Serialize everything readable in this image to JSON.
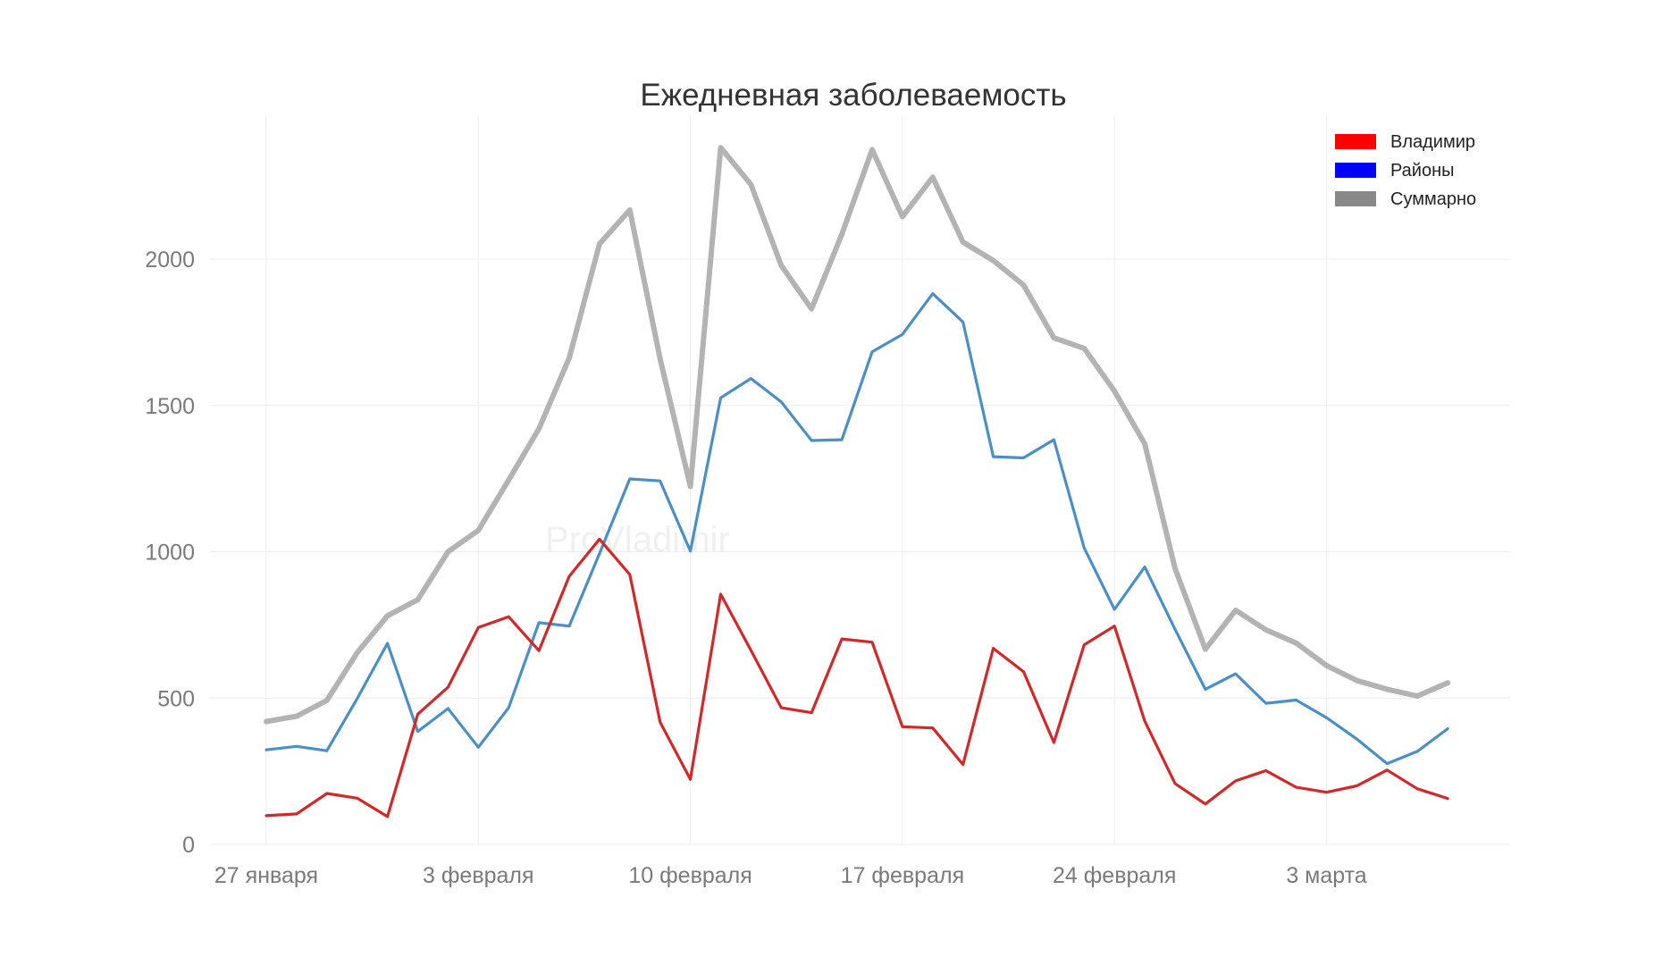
{
  "chart_data": {
    "type": "line",
    "title": "Ежедневная заболеваемость",
    "xlabel": "",
    "ylabel": "",
    "ylim": [
      0,
      2450
    ],
    "y_ticks": [
      0,
      500,
      1000,
      1500,
      2000
    ],
    "x_ticks": [
      {
        "label": "27 января",
        "index": 0
      },
      {
        "label": "3 февраля",
        "index": 7
      },
      {
        "label": "10 февраля",
        "index": 14
      },
      {
        "label": "17 февраля",
        "index": 21
      },
      {
        "label": "24 февраля",
        "index": 28
      },
      {
        "label": "3 марта",
        "index": 35
      }
    ],
    "x": [
      "27 января",
      "28 января",
      "29 января",
      "30 января",
      "31 января",
      "1 февраля",
      "2 февраля",
      "3 февраля",
      "4 февраля",
      "5 февраля",
      "6 февраля",
      "7 февраля",
      "8 февраля",
      "9 февраля",
      "10 февраля",
      "11 февраля",
      "12 февраля",
      "13 февраля",
      "14 февраля",
      "15 февраля",
      "16 февраля",
      "17 февраля",
      "18 февраля",
      "19 февраля",
      "20 февраля",
      "21 февраля",
      "22 февраля",
      "23 февраля",
      "24 февраля",
      "25 февраля",
      "26 февраля",
      "27 февраля",
      "28 февраля",
      "1 марта",
      "2 марта",
      "3 марта",
      "4 марта",
      "5 марта",
      "6 марта",
      "7 марта"
    ],
    "grid": true,
    "legend_position": "top-right",
    "series": [
      {
        "name": "Владимир",
        "color": "#d62728",
        "legend_color": "#ff0000",
        "values": [
          98,
          104,
          174,
          158,
          95,
          445,
          537,
          741,
          778,
          662,
          916,
          1043,
          922,
          418,
          222,
          855,
          663,
          467,
          450,
          702,
          691,
          402,
          398,
          273,
          670,
          590,
          348,
          682,
          746,
          421,
          208,
          138,
          217,
          252,
          195,
          178,
          200,
          254,
          190,
          157
        ]
      },
      {
        "name": "Районы",
        "color": "#4a90c4",
        "legend_color": "#0000ff",
        "values": [
          323,
          335,
          320,
          498,
          687,
          386,
          464,
          332,
          467,
          758,
          746,
          994,
          1249,
          1242,
          1002,
          1526,
          1592,
          1512,
          1380,
          1383,
          1683,
          1743,
          1882,
          1785,
          1325,
          1321,
          1383,
          1013,
          803,
          948,
          735,
          530,
          583,
          482,
          493,
          433,
          360,
          276,
          318,
          395
        ]
      },
      {
        "name": "Суммарно",
        "color": "#b3b3b3",
        "legend_color": "#888888",
        "values": [
          420,
          438,
          492,
          655,
          781,
          836,
          1000,
          1073,
          1245,
          1420,
          1662,
          2052,
          2168,
          1660,
          1223,
          2381,
          2255,
          1978,
          1830,
          2085,
          2374,
          2145,
          2280,
          2058,
          1995,
          1911,
          1731,
          1695,
          1549,
          1369,
          943,
          667,
          800,
          733,
          688,
          611,
          560,
          530,
          507,
          552
        ]
      }
    ]
  },
  "watermark_text": "ProVladimir"
}
